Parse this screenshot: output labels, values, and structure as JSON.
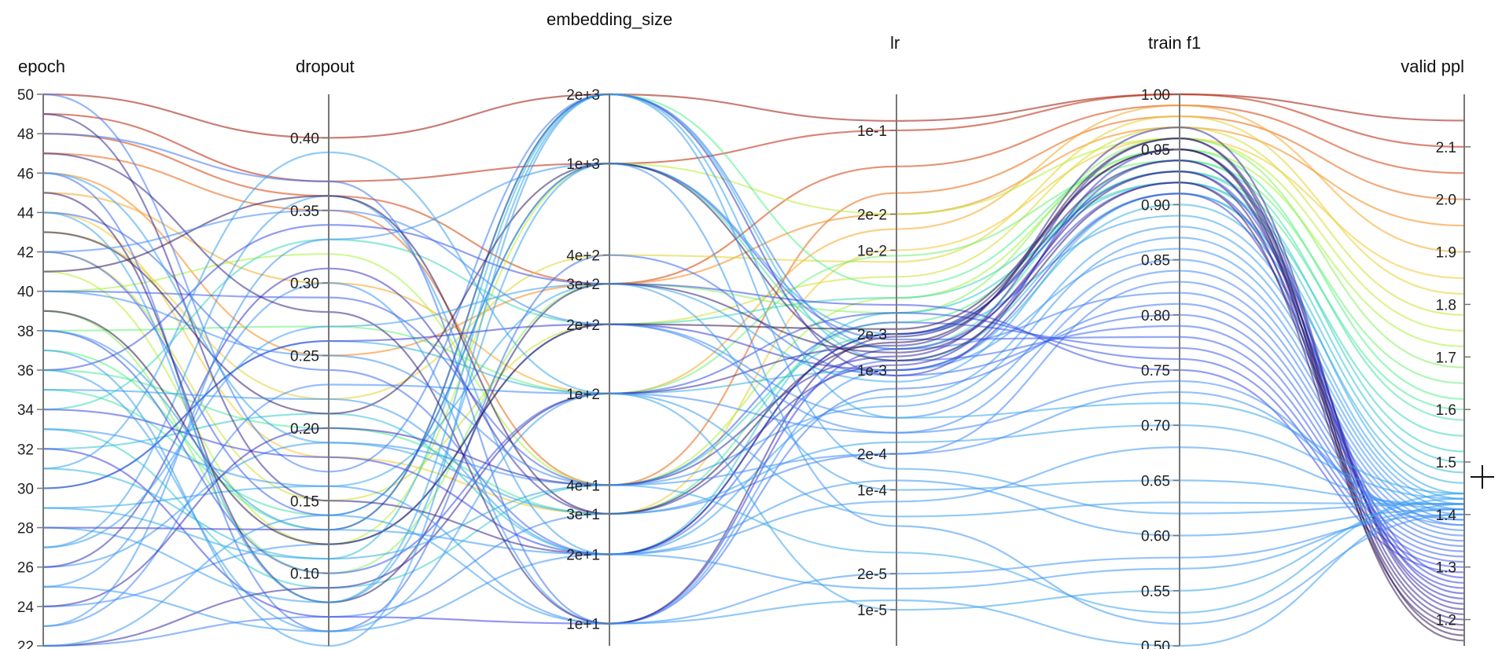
{
  "chart_data": {
    "type": "parallel-coordinates",
    "title": "",
    "axes": [
      {
        "key": "epoch",
        "label": "epoch",
        "scale": "linear",
        "range": [
          22,
          50
        ],
        "ticks": [
          "50",
          "48",
          "46",
          "44",
          "42",
          "40",
          "38",
          "36",
          "34",
          "32",
          "30",
          "28",
          "26",
          "24",
          "22"
        ],
        "tick_values": [
          50,
          48,
          46,
          44,
          42,
          40,
          38,
          36,
          34,
          32,
          30,
          28,
          26,
          24,
          22
        ]
      },
      {
        "key": "dropout",
        "label": "dropout",
        "scale": "linear",
        "range": [
          0.05,
          0.43
        ],
        "ticks": [
          "0.40",
          "0.35",
          "0.30",
          "0.25",
          "0.20",
          "0.15",
          "0.10"
        ],
        "tick_values": [
          0.4,
          0.35,
          0.3,
          0.25,
          0.2,
          0.15,
          0.1
        ]
      },
      {
        "key": "embedding_size",
        "label": "embedding_size",
        "scale": "log",
        "range": [
          8,
          2000
        ],
        "ticks": [
          "2e+3",
          "1e+3",
          "4e+2",
          "3e+2",
          "2e+2",
          "1e+2",
          "4e+1",
          "3e+1",
          "2e+1",
          "1e+1"
        ],
        "tick_values": [
          2000,
          1000,
          400,
          300,
          200,
          100,
          40,
          30,
          20,
          10
        ]
      },
      {
        "key": "lr",
        "label": "lr",
        "scale": "log",
        "range": [
          5e-06,
          0.2
        ],
        "ticks": [
          "1e-1",
          "2e-2",
          "1e-2",
          "2e-3",
          "1e-3",
          "2e-4",
          "1e-4",
          "2e-5",
          "1e-5"
        ],
        "tick_values": [
          0.1,
          0.02,
          0.01,
          0.002,
          0.001,
          0.0002,
          0.0001,
          2e-05,
          1e-05
        ]
      },
      {
        "key": "train_f1",
        "label": "train f1",
        "scale": "linear",
        "range": [
          0.5,
          1.0
        ],
        "ticks": [
          "1.00",
          "0.95",
          "0.90",
          "0.85",
          "0.80",
          "0.75",
          "0.70",
          "0.65",
          "0.60",
          "0.55",
          "0.50"
        ],
        "tick_values": [
          1.0,
          0.95,
          0.9,
          0.85,
          0.8,
          0.75,
          0.7,
          0.65,
          0.6,
          0.55,
          0.5
        ]
      },
      {
        "key": "valid_ppl",
        "label": "valid ppl",
        "scale": "linear",
        "range": [
          1.15,
          2.2
        ],
        "ticks": [
          "2.1",
          "2.0",
          "1.9",
          "1.8",
          "1.7",
          "1.6",
          "1.5",
          "1.4",
          "1.3",
          "1.2"
        ],
        "tick_values": [
          2.1,
          2.0,
          1.9,
          1.8,
          1.7,
          1.6,
          1.5,
          1.4,
          1.3,
          1.2
        ]
      }
    ],
    "color_by": "valid_ppl",
    "colormap": [
      "#30123b",
      "#3a3ee0",
      "#3f8bfa",
      "#2ec4d6",
      "#4df08e",
      "#b3f236",
      "#f5c62b",
      "#f57d15",
      "#c42503",
      "#7a0403"
    ],
    "runs": [
      [
        50,
        0.4,
        2000,
        0.12,
        1.0,
        2.15
      ],
      [
        49,
        0.37,
        1000,
        0.1,
        1.0,
        2.1
      ],
      [
        48,
        0.36,
        300,
        0.05,
        0.99,
        2.05
      ],
      [
        47,
        0.35,
        40,
        0.03,
        0.98,
        2.0
      ],
      [
        46,
        0.25,
        300,
        0.02,
        0.97,
        1.95
      ],
      [
        45,
        0.3,
        100,
        0.015,
        0.99,
        1.9
      ],
      [
        44,
        0.18,
        30,
        0.01,
        0.96,
        1.85
      ],
      [
        43,
        0.22,
        400,
        0.008,
        0.98,
        1.82
      ],
      [
        42,
        0.15,
        200,
        0.006,
        0.97,
        1.78
      ],
      [
        41,
        0.12,
        1000,
        0.02,
        0.96,
        1.75
      ],
      [
        40,
        0.32,
        40,
        0.004,
        0.95,
        1.72
      ],
      [
        39,
        0.1,
        300,
        0.003,
        0.96,
        1.68
      ],
      [
        38,
        0.27,
        100,
        0.009,
        0.94,
        1.65
      ],
      [
        37,
        0.13,
        2000,
        0.005,
        0.95,
        1.62
      ],
      [
        36,
        0.2,
        30,
        0.0025,
        0.93,
        1.6
      ],
      [
        35,
        0.14,
        1000,
        0.0015,
        0.94,
        1.58
      ],
      [
        34,
        0.33,
        200,
        0.004,
        0.92,
        1.55
      ],
      [
        33,
        0.09,
        40,
        0.002,
        0.93,
        1.52
      ],
      [
        32,
        0.21,
        20,
        0.003,
        0.92,
        1.5
      ],
      [
        31,
        0.11,
        2000,
        0.0012,
        0.91,
        1.48
      ],
      [
        30,
        0.26,
        100,
        0.001,
        0.9,
        1.46
      ],
      [
        29,
        0.16,
        300,
        0.0008,
        0.91,
        1.44
      ],
      [
        28,
        0.08,
        1000,
        0.002,
        0.89,
        1.43
      ],
      [
        27,
        0.36,
        20,
        0.0006,
        0.88,
        1.42
      ],
      [
        26,
        0.19,
        40,
        0.0005,
        0.87,
        1.41
      ],
      [
        25,
        0.3,
        10,
        0.001,
        0.86,
        1.4
      ],
      [
        24,
        0.12,
        200,
        0.0004,
        0.85,
        1.39
      ],
      [
        23,
        0.23,
        100,
        0.0003,
        0.84,
        1.38
      ],
      [
        22,
        0.07,
        30,
        0.0002,
        0.83,
        1.37
      ],
      [
        50,
        0.17,
        2000,
        0.0015,
        0.82,
        1.36
      ],
      [
        48,
        0.37,
        10,
        0.0007,
        0.81,
        1.35
      ],
      [
        46,
        0.06,
        400,
        0.0009,
        0.8,
        1.34
      ],
      [
        44,
        0.24,
        20,
        0.0012,
        0.79,
        1.33
      ],
      [
        42,
        0.14,
        1000,
        0.0018,
        0.78,
        1.32
      ],
      [
        40,
        0.29,
        40,
        0.0025,
        0.77,
        1.31
      ],
      [
        38,
        0.1,
        100,
        0.003,
        0.76,
        1.3
      ],
      [
        36,
        0.34,
        300,
        0.0035,
        0.75,
        1.29
      ],
      [
        34,
        0.18,
        20,
        0.002,
        0.93,
        1.28
      ],
      [
        32,
        0.07,
        10,
        0.0015,
        0.92,
        1.27
      ],
      [
        30,
        0.26,
        200,
        0.001,
        0.91,
        1.26
      ],
      [
        28,
        0.13,
        2000,
        0.0009,
        0.95,
        1.25
      ],
      [
        26,
        0.31,
        30,
        0.0011,
        0.94,
        1.24
      ],
      [
        24,
        0.2,
        40,
        0.0013,
        0.96,
        1.23
      ],
      [
        22,
        0.09,
        100,
        0.0016,
        0.97,
        1.22
      ],
      [
        49,
        0.15,
        20,
        0.002,
        0.95,
        1.21
      ],
      [
        47,
        0.28,
        10,
        0.0019,
        0.94,
        1.2
      ],
      [
        45,
        0.08,
        300,
        0.0014,
        0.93,
        1.19
      ],
      [
        43,
        0.21,
        1000,
        0.0012,
        0.92,
        1.18
      ],
      [
        41,
        0.36,
        30,
        0.0017,
        0.96,
        1.17
      ],
      [
        39,
        0.12,
        200,
        0.0022,
        0.95,
        1.16
      ],
      [
        37,
        0.05,
        2000,
        0.00015,
        0.62,
        1.42
      ],
      [
        35,
        0.22,
        20,
        0.00012,
        0.6,
        1.41
      ],
      [
        33,
        0.16,
        10,
        2e-05,
        0.58,
        1.4
      ],
      [
        31,
        0.39,
        100,
        1e-05,
        0.55,
        1.43
      ],
      [
        29,
        0.11,
        40,
        3e-05,
        0.53,
        1.44
      ],
      [
        27,
        0.27,
        300,
        0.0001,
        0.65,
        1.42
      ],
      [
        25,
        0.06,
        20,
        8e-05,
        0.68,
        1.41
      ],
      [
        23,
        0.33,
        1000,
        5e-05,
        0.52,
        1.4
      ],
      [
        22,
        0.14,
        10,
        1.2e-05,
        0.5,
        1.42
      ],
      [
        46,
        0.19,
        30,
        0.00025,
        0.7,
        1.43
      ],
      [
        44,
        0.08,
        2000,
        0.0004,
        0.72,
        1.44
      ],
      [
        42,
        0.35,
        200,
        0.0003,
        0.74,
        1.38
      ],
      [
        40,
        0.25,
        40,
        0.0002,
        0.73,
        1.39
      ],
      [
        38,
        0.13,
        20,
        1.5e-05,
        0.57,
        1.41
      ],
      [
        36,
        0.06,
        100,
        6e-05,
        0.63,
        1.42
      ]
    ]
  }
}
